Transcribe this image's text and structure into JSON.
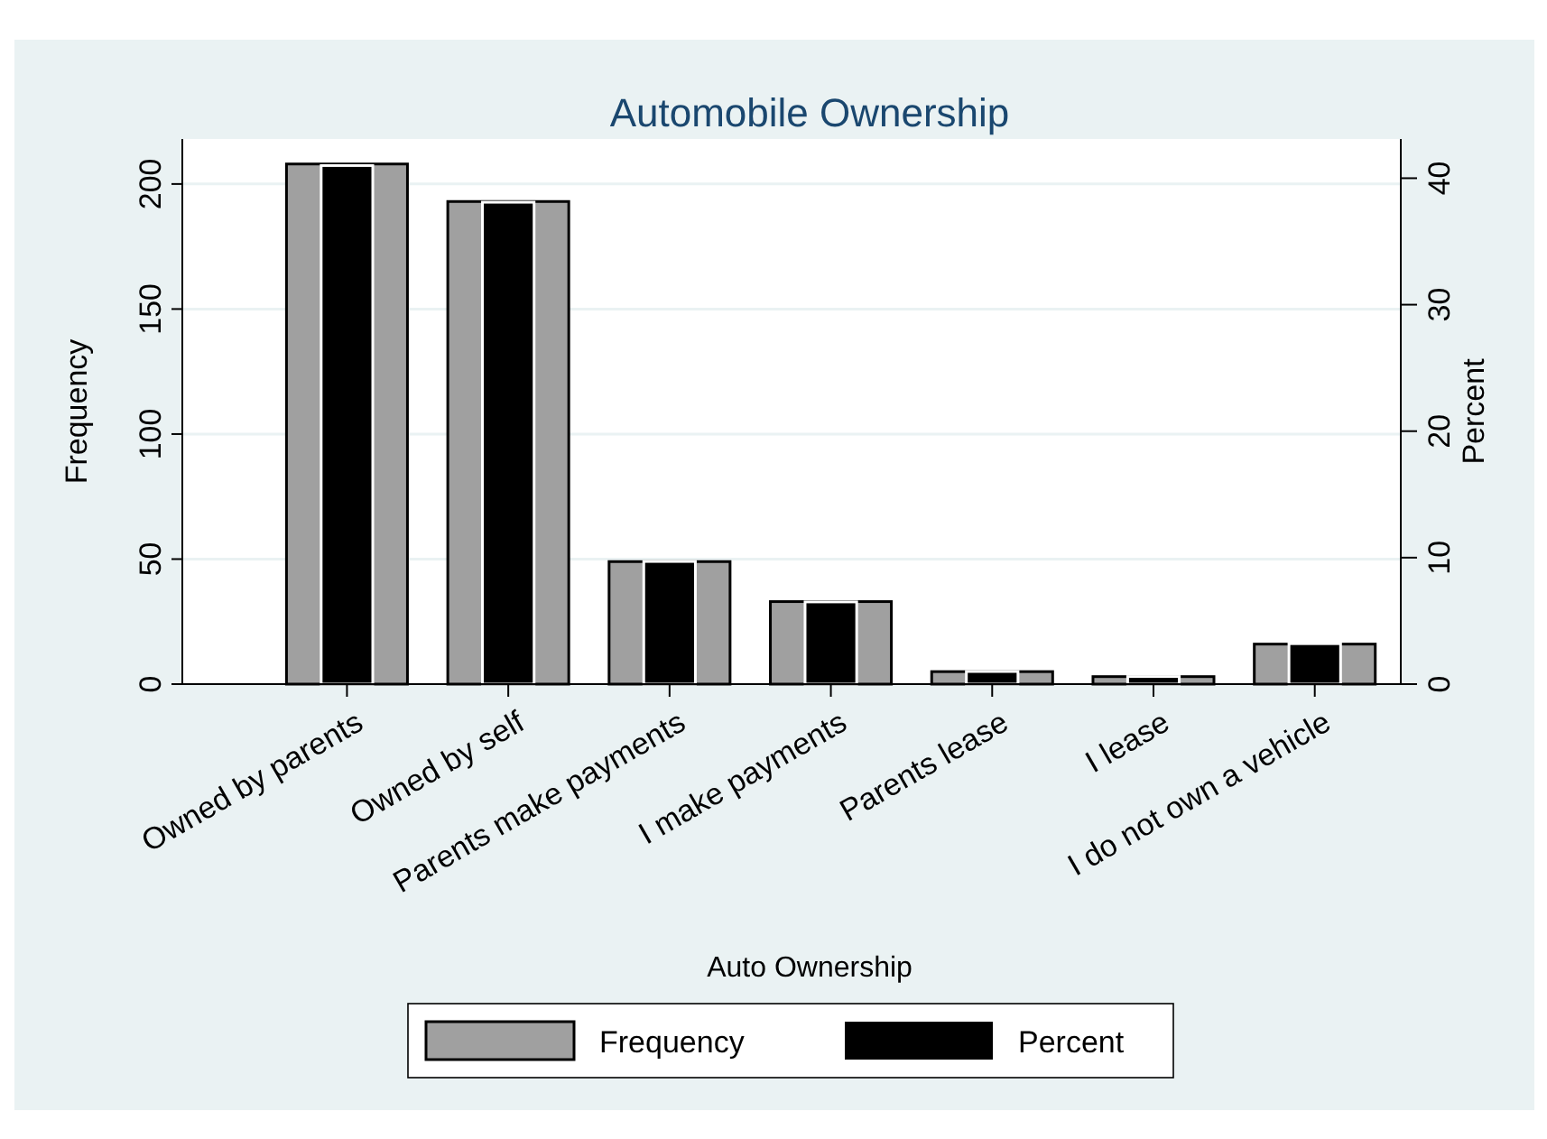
{
  "chart_data": {
    "type": "bar",
    "title": "Automobile Ownership",
    "xlabel": "Auto Ownership",
    "ylabel": "Frequency",
    "y2label": "Percent",
    "categories": [
      "Owned by parents",
      "Owned by self",
      "Parents make payments",
      "I make payments",
      "Parents lease",
      "I lease",
      "I do not own a vehicle"
    ],
    "series": [
      {
        "name": "Frequency",
        "color": "#a0a0a0",
        "values": [
          208,
          193,
          49,
          33,
          5,
          3,
          16
        ]
      },
      {
        "name": "Percent",
        "color": "#000000",
        "axis": "y2",
        "values": [
          41.0,
          38.1,
          9.7,
          6.5,
          1.0,
          0.6,
          3.2
        ]
      }
    ],
    "ylim": [
      0,
      218
    ],
    "yticks": [
      0,
      50,
      100,
      150,
      200
    ],
    "y2lim": [
      0,
      43.1
    ],
    "y2ticks": [
      0,
      10,
      20,
      30,
      40
    ],
    "grid": "y",
    "legend": "bottom"
  }
}
